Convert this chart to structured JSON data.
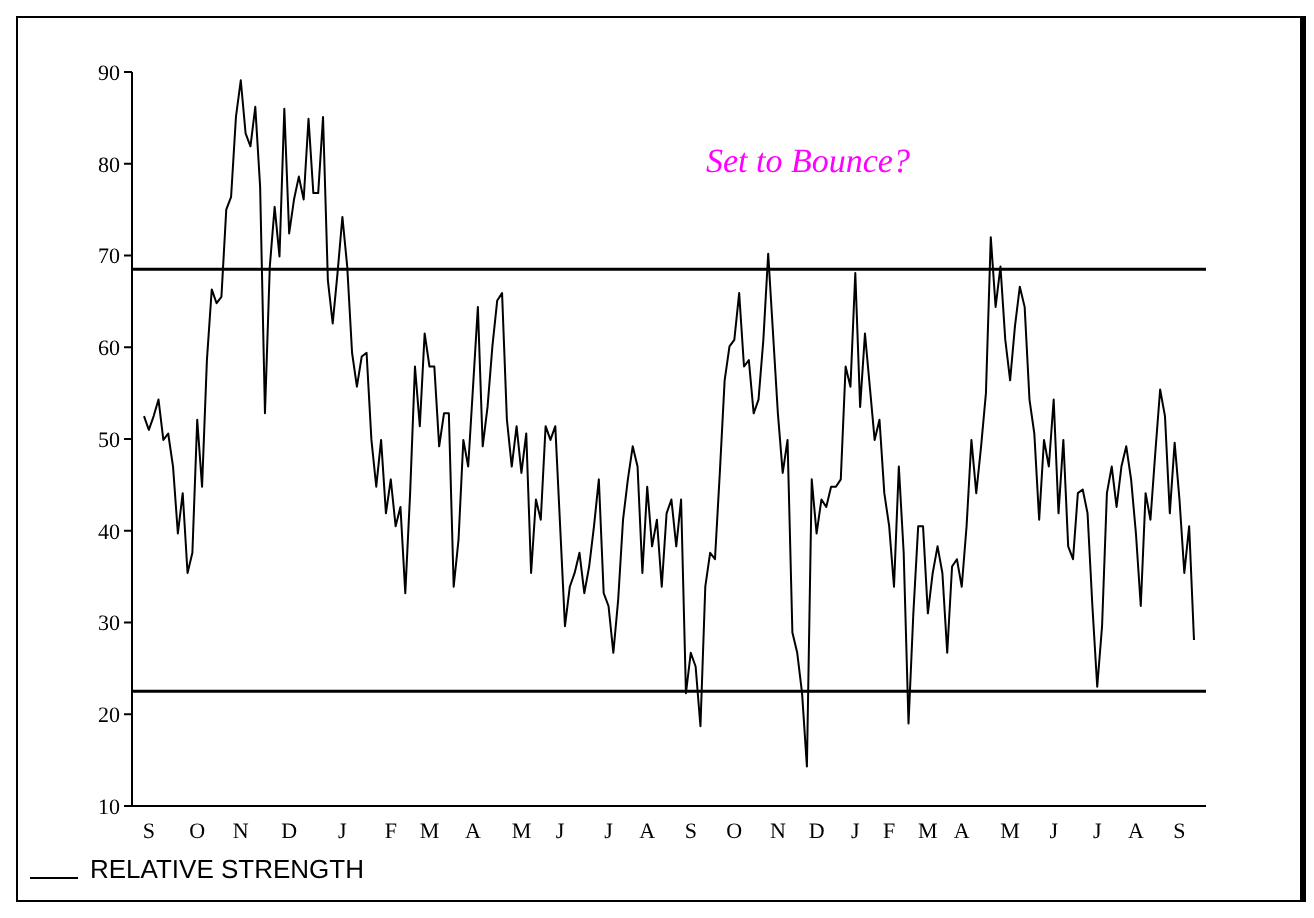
{
  "chart_data": {
    "type": "line",
    "annotations": [
      "Set to Bounce?"
    ],
    "categories": [
      null,
      "S",
      null,
      null,
      null,
      null,
      null,
      null,
      null,
      null,
      null,
      "O",
      null,
      null,
      null,
      null,
      null,
      null,
      null,
      null,
      "N",
      null,
      null,
      null,
      null,
      null,
      null,
      null,
      null,
      null,
      "D",
      null,
      null,
      null,
      null,
      null,
      null,
      null,
      null,
      null,
      null,
      "J",
      null,
      null,
      null,
      null,
      null,
      null,
      null,
      null,
      null,
      "F",
      null,
      null,
      null,
      null,
      null,
      null,
      null,
      "M",
      null,
      null,
      null,
      null,
      null,
      null,
      null,
      null,
      "A",
      null,
      null,
      null,
      null,
      null,
      null,
      null,
      null,
      null,
      "M",
      null,
      null,
      null,
      null,
      null,
      null,
      null,
      "J",
      null,
      null,
      null,
      null,
      null,
      null,
      null,
      null,
      null,
      "J",
      null,
      null,
      null,
      null,
      null,
      null,
      null,
      "A",
      null,
      null,
      null,
      null,
      null,
      null,
      null,
      null,
      "S",
      null,
      null,
      null,
      null,
      null,
      null,
      null,
      null,
      "O",
      null,
      null,
      null,
      null,
      null,
      null,
      null,
      null,
      "N",
      null,
      null,
      null,
      null,
      null,
      null,
      null,
      "D",
      null,
      null,
      null,
      null,
      null,
      null,
      null,
      "J",
      null,
      null,
      null,
      null,
      null,
      null,
      "F",
      null,
      null,
      null,
      null,
      null,
      null,
      null,
      "M",
      null,
      null,
      null,
      null,
      null,
      null,
      "A",
      null,
      null,
      null,
      null,
      null,
      null,
      null,
      null,
      null,
      "M",
      null,
      null,
      null,
      null,
      null,
      null,
      null,
      null,
      "J",
      null,
      null,
      null,
      null,
      null,
      null,
      null,
      null,
      "J",
      null,
      null,
      null,
      null,
      null,
      null,
      null,
      "A",
      null,
      null,
      null,
      null,
      null,
      null,
      null,
      null,
      "S",
      null,
      null,
      null
    ],
    "series": [
      {
        "name": "RELATIVE STRENGTH",
        "color": "#000000",
        "values": [
          52.5,
          51,
          52.5,
          54.3,
          49.9,
          50.6,
          47,
          39.7,
          44.1,
          35.4,
          37.6,
          52.1,
          44.8,
          58.6,
          66.3,
          64.8,
          65.5,
          75,
          76.4,
          85.1,
          89.1,
          83.3,
          81.9,
          86.2,
          77.5,
          52.8,
          68.8,
          75.3,
          69.9,
          86,
          72.4,
          76.1,
          78.6,
          76.1,
          84.9,
          76.8,
          76.8,
          85.1,
          67.3,
          62.6,
          68.1,
          74.2,
          68.8,
          59.4,
          55.7,
          59,
          59.4,
          49.9,
          44.8,
          49.9,
          41.9,
          45.6,
          40.5,
          42.6,
          33.2,
          44.1,
          57.9,
          51.4,
          61.5,
          57.9,
          57.9,
          49.2,
          52.8,
          52.8,
          33.9,
          39,
          49.9,
          47,
          55.7,
          64.4,
          49.2,
          53.5,
          60.1,
          65.1,
          65.9,
          52.1,
          47,
          51.4,
          46.3,
          50.6,
          35.4,
          43.4,
          41.2,
          51.4,
          49.9,
          51.4,
          40.5,
          29.6,
          33.9,
          35.4,
          37.6,
          33.2,
          36.1,
          40.5,
          45.6,
          33.2,
          31.8,
          26.7,
          32.5,
          41.2,
          45.6,
          49.2,
          47,
          35.4,
          44.8,
          38.3,
          41.2,
          33.9,
          41.9,
          43.4,
          38.3,
          43.4,
          22.3,
          26.7,
          25.2,
          18.7,
          33.9,
          37.6,
          36.9,
          46.3,
          56.4,
          60.1,
          60.8,
          65.9,
          57.9,
          58.6,
          52.8,
          54.3,
          60.8,
          70.2,
          61.5,
          52.8,
          46.3,
          49.9,
          28.9,
          26.7,
          22.3,
          14.3,
          45.6,
          39.7,
          43.4,
          42.6,
          44.8,
          44.8,
          45.6,
          57.9,
          55.7,
          68.1,
          53.5,
          61.5,
          55.7,
          49.9,
          52.1,
          44.1,
          40.5,
          33.9,
          47,
          37.6,
          19,
          31,
          40.5,
          40.5,
          31,
          35.4,
          38.3,
          35.4,
          26.7,
          36.1,
          36.9,
          33.9,
          40.5,
          49.9,
          44.1,
          49.2,
          55,
          72,
          64.4,
          68.8,
          60.8,
          56.4,
          62.3,
          66.6,
          64.4,
          54.3,
          50.6,
          41.2,
          49.9,
          47,
          54.3,
          41.9,
          49.9,
          38.3,
          36.9,
          44.1,
          44.5,
          41.9,
          31.8,
          23,
          29.6,
          44.1,
          47,
          42.6,
          47,
          49.2,
          45.6,
          39.7,
          31.8,
          44.1,
          41.2,
          48.5,
          55.4,
          52.5,
          41.9,
          49.6,
          43.4,
          35.4,
          40.5,
          28.1
        ]
      }
    ],
    "ylim": [
      10,
      90
    ],
    "yticks": [
      10,
      20,
      30,
      40,
      50,
      60,
      70,
      80,
      90
    ],
    "ref_lines": [
      {
        "axis": "y",
        "value": 68.5,
        "color": "#000000"
      },
      {
        "axis": "y",
        "value": 22.5,
        "color": "#000000"
      }
    ],
    "grid": false,
    "legend": "bottom left",
    "marker": "none",
    "line_style": "solid"
  }
}
